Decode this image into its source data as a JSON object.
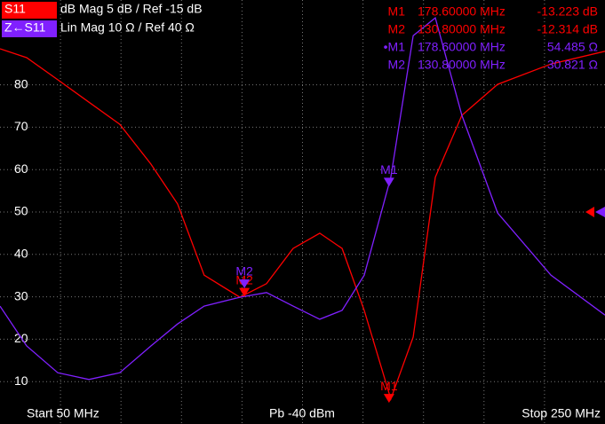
{
  "chart_data": {
    "type": "line",
    "header": [
      {
        "badge": "S11",
        "color": "#ff0000",
        "text": "dB Mag  5 dB /  Ref -15 dB"
      },
      {
        "badge": "Z←S11",
        "color": "#8020ff",
        "text": "Lin Mag  10 Ω /  Ref 40 Ω"
      }
    ],
    "readout": [
      [
        "M1",
        "178.60000 MHz",
        "-13.223 dB"
      ],
      [
        "M2",
        "130.80000 MHz",
        "-12.314 dB"
      ],
      [
        "•M1",
        "178.60000 MHz",
        "54.485  Ω"
      ],
      [
        "M2",
        "130.80000 MHz",
        "30.821  Ω"
      ]
    ],
    "footer": [
      "Start  50 MHz",
      "Pb  -40 dBm",
      "Stop  250 MHz"
    ],
    "x": [
      50,
      58.8,
      69.1,
      79.4,
      89.6,
      99.9,
      108.7,
      117.5,
      129.3,
      138.1,
      146.9,
      155.7,
      163.1,
      170.4,
      179.2,
      186.6,
      193.9,
      202.7,
      214.5,
      232.1,
      250
    ],
    "series": [
      {
        "name": "S11",
        "color": "#ff0000",
        "values": [
          88.5,
          86.4,
          81.2,
          75.9,
          70.7,
          61.3,
          51.9,
          35.1,
          29.9,
          33.1,
          41.4,
          45.0,
          41.4,
          26.8,
          5.9,
          20.5,
          58.2,
          72.8,
          80.1,
          84.9,
          87.9
        ]
      },
      {
        "name": "Z←S11",
        "color": "#8020ff",
        "values": [
          27.8,
          18.4,
          12.1,
          10.5,
          12.1,
          18.4,
          23.6,
          27.8,
          29.9,
          31.0,
          27.8,
          24.7,
          26.8,
          35.1,
          58.2,
          91.6,
          95.8,
          72.8,
          49.8,
          35.1,
          25.7
        ]
      }
    ],
    "markers": [
      {
        "label": "M1",
        "x": 178.6,
        "series": 0,
        "y": 5
      },
      {
        "label": "M1",
        "x": 178.6,
        "series": 1,
        "y": 56
      },
      {
        "label": "M2",
        "x": 130.8,
        "series": 0,
        "y": 30
      },
      {
        "label": "M2",
        "x": 130.8,
        "series": 1,
        "y": 32
      }
    ],
    "ref_value": 50,
    "xlim": [
      50,
      250
    ],
    "ylim": [
      0,
      100
    ],
    "yticks": [
      10,
      20,
      30,
      40,
      50,
      60,
      70,
      80
    ],
    "xgrid": [
      70,
      90,
      110,
      130,
      150,
      170,
      190,
      210,
      230
    ],
    "grid": true
  }
}
